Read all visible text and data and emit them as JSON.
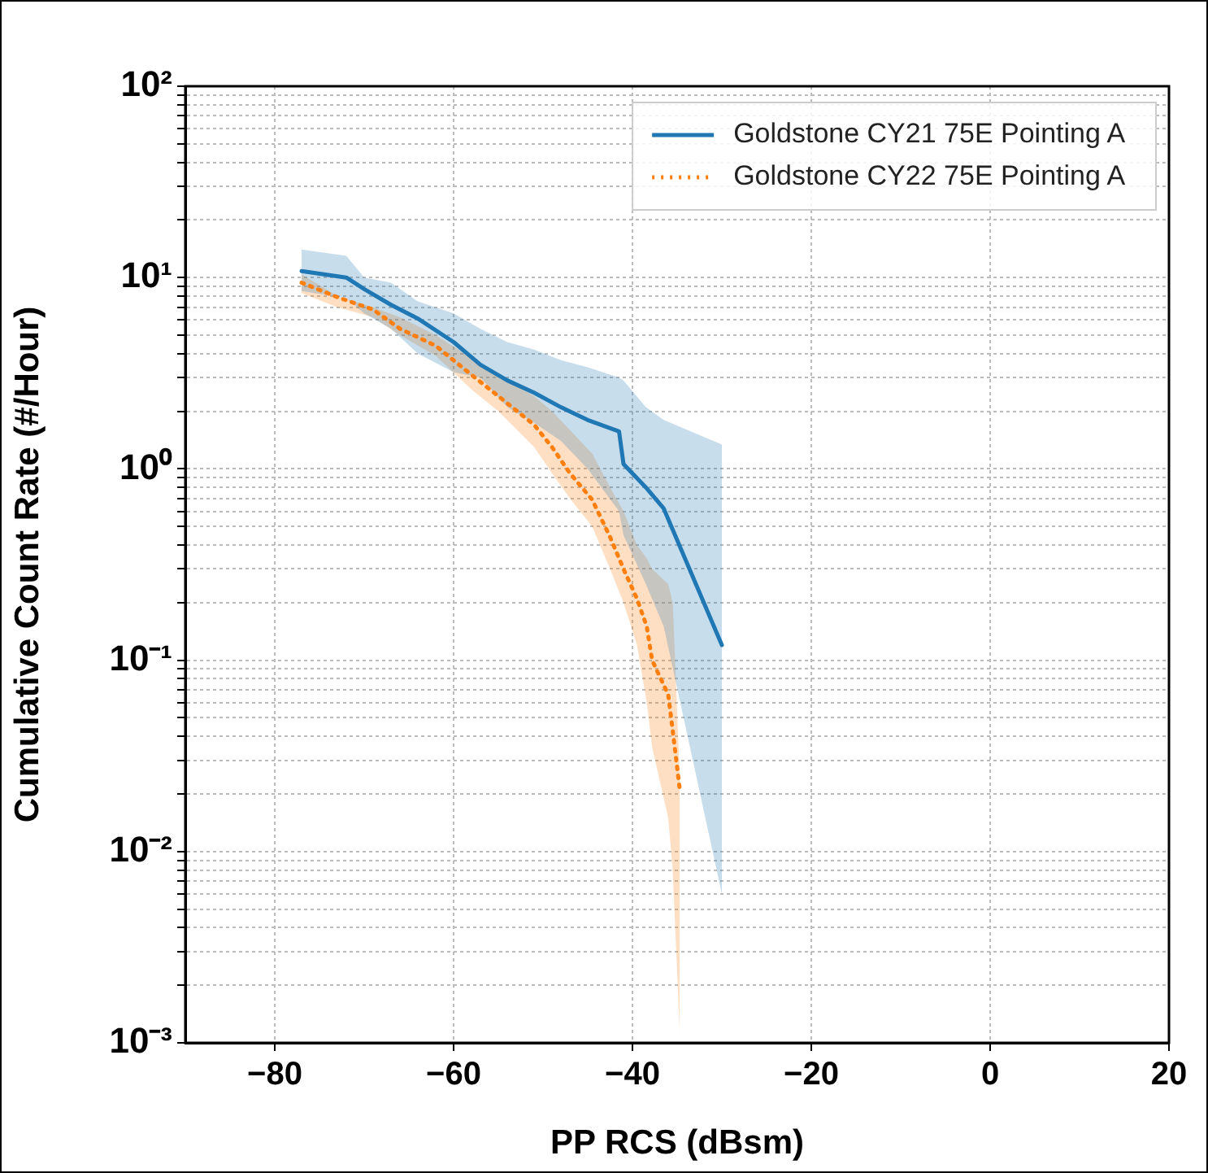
{
  "chart_data": {
    "type": "line",
    "xlabel": "PP RCS (dBsm)",
    "ylabel": "Cumulative Count Rate (#/Hour)",
    "xlim": [
      -90,
      20
    ],
    "xticks": [
      {
        "value": -80,
        "label": "−80"
      },
      {
        "value": -60,
        "label": "−60"
      },
      {
        "value": -40,
        "label": "−40"
      },
      {
        "value": -20,
        "label": "−20"
      },
      0,
      20
    ],
    "ylim": [
      0.001,
      100
    ],
    "log": "y",
    "yticks": [
      {
        "value": 0.001,
        "label": "10⁻³"
      },
      {
        "value": 0.002,
        "label": null
      },
      {
        "value": 0.003,
        "label": null
      },
      {
        "value": 0.004,
        "label": null
      },
      {
        "value": 0.005,
        "label": null
      },
      {
        "value": 0.006,
        "label": null
      },
      {
        "value": 0.007,
        "label": null
      },
      {
        "value": 0.008,
        "label": null
      },
      {
        "value": 0.009,
        "label": null
      },
      {
        "value": 0.01,
        "label": "10⁻²"
      },
      {
        "value": 0.02,
        "label": null
      },
      {
        "value": 0.03,
        "label": null
      },
      {
        "value": 0.04,
        "label": null
      },
      {
        "value": 0.05,
        "label": null
      },
      {
        "value": 0.06,
        "label": null
      },
      {
        "value": 0.07,
        "label": null
      },
      {
        "value": 0.08,
        "label": null
      },
      {
        "value": 0.09,
        "label": null
      },
      {
        "value": 0.1,
        "label": "10⁻¹"
      },
      {
        "value": 0.2,
        "label": null
      },
      {
        "value": 0.3,
        "label": null
      },
      {
        "value": 0.4,
        "label": null
      },
      {
        "value": 0.5,
        "label": null
      },
      {
        "value": 0.6,
        "label": null
      },
      {
        "value": 0.7,
        "label": null
      },
      {
        "value": 0.8,
        "label": null
      },
      {
        "value": 0.9,
        "label": null
      },
      {
        "value": 1,
        "label": "10⁰"
      },
      {
        "value": 2,
        "label": null
      },
      {
        "value": 3,
        "label": null
      },
      {
        "value": 4,
        "label": null
      },
      {
        "value": 5,
        "label": null
      },
      {
        "value": 6,
        "label": null
      },
      {
        "value": 7,
        "label": null
      },
      {
        "value": 8,
        "label": null
      },
      {
        "value": 9,
        "label": null
      },
      {
        "value": 10,
        "label": "10¹"
      },
      {
        "value": 20,
        "label": null
      },
      {
        "value": 30,
        "label": null
      },
      {
        "value": 40,
        "label": null
      },
      {
        "value": 50,
        "label": null
      },
      {
        "value": 60,
        "label": null
      },
      {
        "value": 70,
        "label": null
      },
      {
        "value": 80,
        "label": null
      },
      {
        "value": 90,
        "label": null
      },
      {
        "value": 100,
        "label": "10²"
      }
    ],
    "grid": true,
    "legend": "top right",
    "marker": "none",
    "series": [
      {
        "name": "Goldstone CY21 75E Pointing A",
        "color": "#1f77b4",
        "line_style": "solid",
        "x": [
          -77,
          -72,
          -70,
          -67,
          -64,
          -60,
          -57,
          -54,
          -51,
          -48,
          -45,
          -41.5,
          -41,
          -38.5,
          -36.5,
          -30
        ],
        "values": [
          10.8,
          10,
          8.7,
          7.2,
          6.1,
          4.6,
          3.5,
          2.9,
          2.5,
          2.1,
          1.8,
          1.57,
          1.06,
          0.8,
          0.62,
          0.12
        ],
        "upper": [
          14,
          13,
          10,
          9.4,
          7.5,
          6.5,
          5.4,
          4.6,
          4.2,
          3.7,
          3.4,
          3.0,
          2.9,
          2.1,
          1.8,
          1.34
        ],
        "lower": [
          8.5,
          7.8,
          6.5,
          5.4,
          4.0,
          3.2,
          3.0,
          2.1,
          1.74,
          1.4,
          1.0,
          0.6,
          0.45,
          0.25,
          0.15,
          0.006
        ]
      },
      {
        "name": "Goldstone CY22 75E Pointing A",
        "color": "#ff7f0e",
        "line_style": "dotted",
        "x": [
          -77,
          -73,
          -69,
          -66,
          -62,
          -58,
          -55,
          -51,
          -49,
          -47,
          -44.5,
          -42.5,
          -41,
          -39.5,
          -38.4,
          -37.8,
          -36,
          -35.5,
          -34.7
        ],
        "values": [
          9.4,
          7.9,
          6.8,
          5.4,
          4.4,
          3.1,
          2.4,
          1.7,
          1.3,
          0.95,
          0.69,
          0.44,
          0.3,
          0.21,
          0.15,
          0.1,
          0.066,
          0.043,
          0.021
        ],
        "upper": [
          10.4,
          8,
          7,
          6.2,
          5,
          3.8,
          3.1,
          2.4,
          2.0,
          1.6,
          1.2,
          0.8,
          0.6,
          0.4,
          0.34,
          0.3,
          0.25,
          0.2,
          0.025
        ],
        "lower": [
          8.3,
          7,
          6.2,
          5,
          3.9,
          2.6,
          2.0,
          1.3,
          0.95,
          0.7,
          0.5,
          0.3,
          0.2,
          0.12,
          0.06,
          0.035,
          0.015,
          0.008,
          0.0011
        ]
      }
    ]
  }
}
